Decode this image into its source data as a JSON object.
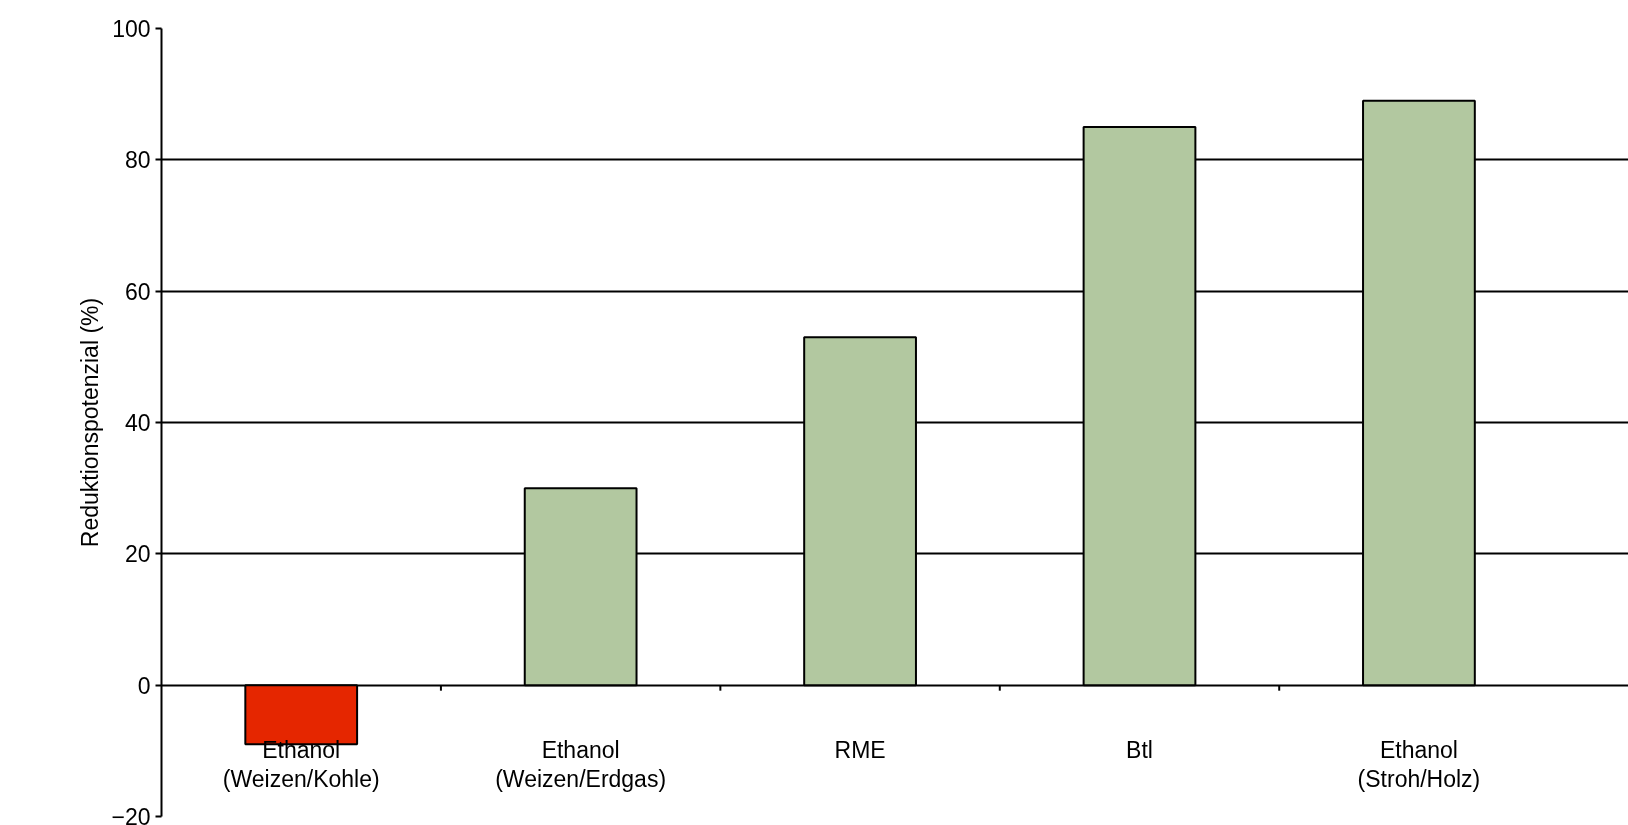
{
  "chart_data": {
    "type": "bar",
    "ylabel": "Reduktionspotenzial (%)",
    "categories": [
      "Ethanol\n(Weizen/Kohle)",
      "Ethanol\n(Weizen/Erdgas)",
      "RME",
      "Btl",
      "Ethanol\n(Stroh/Holz)"
    ],
    "values": [
      -9,
      30,
      53,
      85,
      89
    ],
    "colors": [
      "#e52600",
      "#b2c8a0",
      "#b2c8a0",
      "#b2c8a0",
      "#b2c8a0"
    ],
    "ylim": [
      -20,
      100
    ],
    "yticks": [
      -20,
      0,
      20,
      40,
      60,
      80,
      100
    ],
    "grid": "y"
  }
}
